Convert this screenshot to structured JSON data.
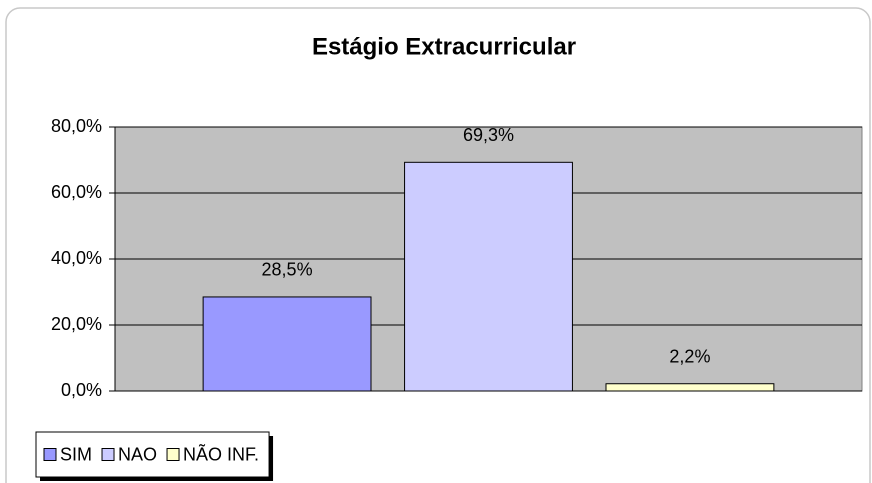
{
  "chart_data": {
    "type": "bar",
    "title": "Estágio Extracurricular",
    "categories": [
      null
    ],
    "series": [
      {
        "name": "SIM",
        "color": "#9999ff",
        "values": [
          28.5
        ],
        "value_labels": [
          "28,5%"
        ]
      },
      {
        "name": "NAO",
        "color": "#ccccff",
        "values": [
          69.3
        ],
        "value_labels": [
          "69,3%"
        ]
      },
      {
        "name": "NÃO INF.",
        "color": "#ffffcc",
        "values": [
          2.2
        ],
        "value_labels": [
          "2,2%"
        ]
      }
    ],
    "ylim": [
      0,
      80
    ],
    "yticks": [
      {
        "value": 0,
        "label": "0,0%"
      },
      {
        "value": 20,
        "label": "20,0%"
      },
      {
        "value": 40,
        "label": "40,0%"
      },
      {
        "value": 60,
        "label": "60,0%"
      },
      {
        "value": 80,
        "label": "80,0%"
      }
    ],
    "grid": true,
    "legend": "bottom-left"
  }
}
